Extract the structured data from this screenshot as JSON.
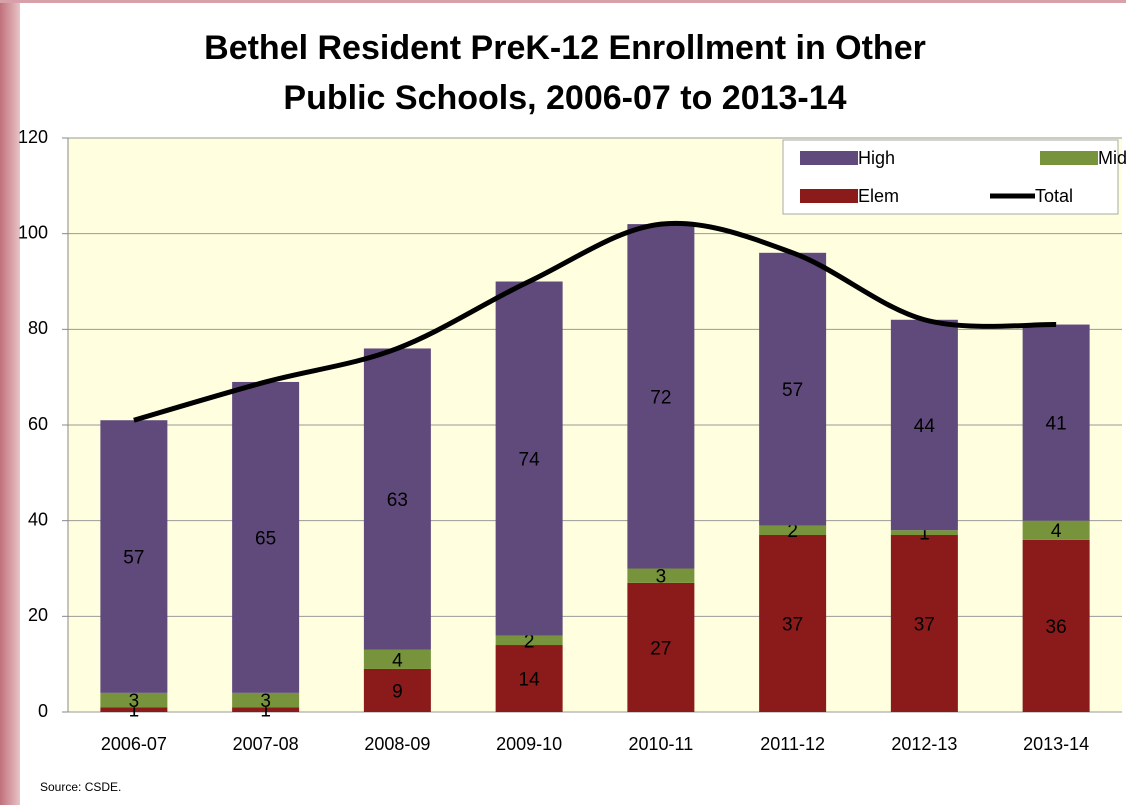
{
  "chart_data": {
    "type": "stacked_bar_line",
    "title": "Bethel Resident PreK-12 Enrollment in Other",
    "subtitle": "Public Schools, 2006-07 to 2013-14",
    "source": "Source: CSDE.",
    "categories": [
      "2006-07",
      "2007-08",
      "2008-09",
      "2009-10",
      "2010-11",
      "2011-12",
      "2012-13",
      "2013-14"
    ],
    "series": [
      {
        "name": "Elem",
        "color": "#8b1a1a",
        "values": [
          1,
          1,
          9,
          14,
          27,
          37,
          37,
          36
        ]
      },
      {
        "name": "Middle",
        "color": "#77933c",
        "values": [
          3,
          3,
          4,
          2,
          3,
          2,
          1,
          4
        ]
      },
      {
        "name": "High",
        "color": "#604a7b",
        "values": [
          57,
          65,
          63,
          74,
          72,
          57,
          44,
          41
        ]
      },
      {
        "name": "Total",
        "color": "#000000",
        "values": [
          61,
          69,
          76,
          90,
          102,
          96,
          82,
          81
        ]
      }
    ],
    "ylim": [
      0,
      120
    ],
    "yticks": [
      0,
      20,
      40,
      60,
      80,
      100,
      120
    ],
    "grid": true
  }
}
